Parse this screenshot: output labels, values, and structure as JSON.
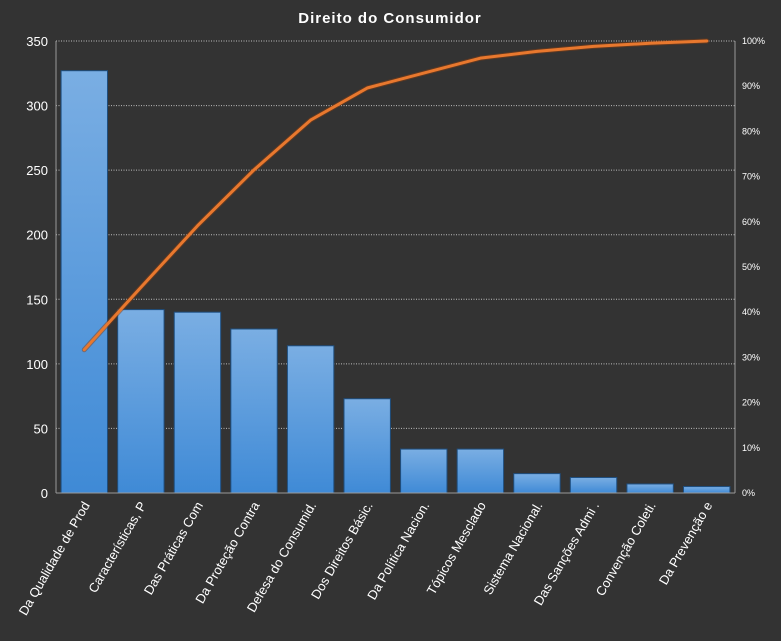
{
  "chart_data": {
    "type": "bar",
    "title": "Direito  do  Consumidor",
    "categories": [
      "Da Qualidade de Prod",
      "Características, P",
      "Das Práticas Com",
      "Da Proteção Contra",
      "Defesa do Consumid.",
      "Dos Direitos Básic.",
      "Da Política Nacion.",
      "Tópicos Mesclado",
      "Sistema Nacional.",
      "Das Sanções Admi .",
      "Convenção Coleti.",
      "Da Prevenção e"
    ],
    "series": [
      {
        "type": "bar",
        "axis": "left",
        "values": [
          327,
          142,
          140,
          127,
          114,
          73,
          34,
          34,
          15,
          12,
          7,
          5
        ]
      },
      {
        "type": "line",
        "axis": "right",
        "values": [
          31.7,
          45.5,
          59.1,
          71.5,
          82.5,
          89.6,
          92.9,
          96.2,
          97.7,
          98.8,
          99.5,
          100
        ]
      }
    ],
    "y_axis": {
      "min": 0,
      "max": 350,
      "ticks": [
        "0",
        "50",
        "100",
        "150",
        "200",
        "250",
        "300",
        "350"
      ]
    },
    "y2_axis": {
      "min": 0,
      "max": 100,
      "ticks": [
        "0%",
        "10%",
        "20%",
        "30%",
        "40%",
        "50%",
        "60%",
        "70%",
        "80%",
        "90%",
        "100%"
      ]
    },
    "grid": true,
    "legend": "none",
    "colors": {
      "background": "#333333",
      "bar_top": "#7aaee3",
      "bar_bottom": "#3f8ad6",
      "line": "#e8782e",
      "text": "#ffffff"
    }
  }
}
